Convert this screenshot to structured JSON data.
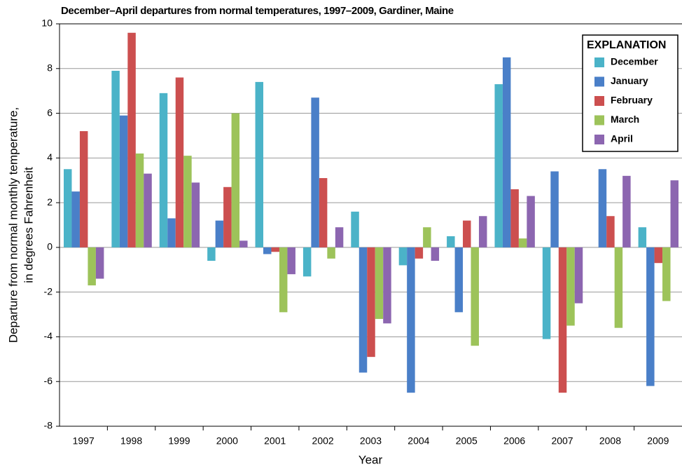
{
  "chart_data": {
    "type": "bar",
    "title": "December–April departures from normal temperatures, 1997–2009, Gardiner, Maine",
    "ylabel": [
      "Departure from normal monthly temperature,",
      "in degrees Fahrenheit"
    ],
    "xlabel": "Year",
    "legend_title": "EXPLANATION",
    "legend": "top-right",
    "grid": true,
    "categories": [
      "1997",
      "1998",
      "1999",
      "2000",
      "2001",
      "2002",
      "2003",
      "2004",
      "2005",
      "2006",
      "2007",
      "2008",
      "2009"
    ],
    "ylim": [
      -8,
      10
    ],
    "yticks": [
      -8,
      -6,
      -4,
      -2,
      0,
      2,
      4,
      6,
      8,
      10
    ],
    "series": [
      {
        "name": "December",
        "color": "#4bb3c8",
        "values": [
          3.5,
          7.9,
          6.9,
          -0.6,
          7.4,
          -1.3,
          1.6,
          -0.8,
          0.5,
          7.3,
          -4.1,
          null,
          0.9
        ]
      },
      {
        "name": "January",
        "color": "#4a7fc8",
        "values": [
          2.5,
          5.9,
          1.3,
          1.2,
          -0.3,
          6.7,
          -5.6,
          -6.5,
          -2.9,
          8.5,
          3.4,
          3.5,
          -6.2
        ]
      },
      {
        "name": "February",
        "color": "#cc4f4f",
        "values": [
          5.2,
          9.6,
          7.6,
          2.7,
          -0.2,
          3.1,
          -4.9,
          -0.5,
          1.2,
          2.6,
          -6.5,
          1.4,
          -0.7
        ]
      },
      {
        "name": "March",
        "color": "#9dc35a",
        "values": [
          -1.7,
          4.2,
          4.1,
          6.0,
          -2.9,
          -0.5,
          -3.2,
          0.9,
          -4.4,
          0.4,
          -3.5,
          -3.6,
          -2.4
        ]
      },
      {
        "name": "April",
        "color": "#8c66b0",
        "values": [
          -1.4,
          3.3,
          2.9,
          0.3,
          -1.2,
          0.9,
          -3.4,
          -0.6,
          1.4,
          2.3,
          -2.5,
          3.2,
          3.0
        ]
      }
    ]
  }
}
